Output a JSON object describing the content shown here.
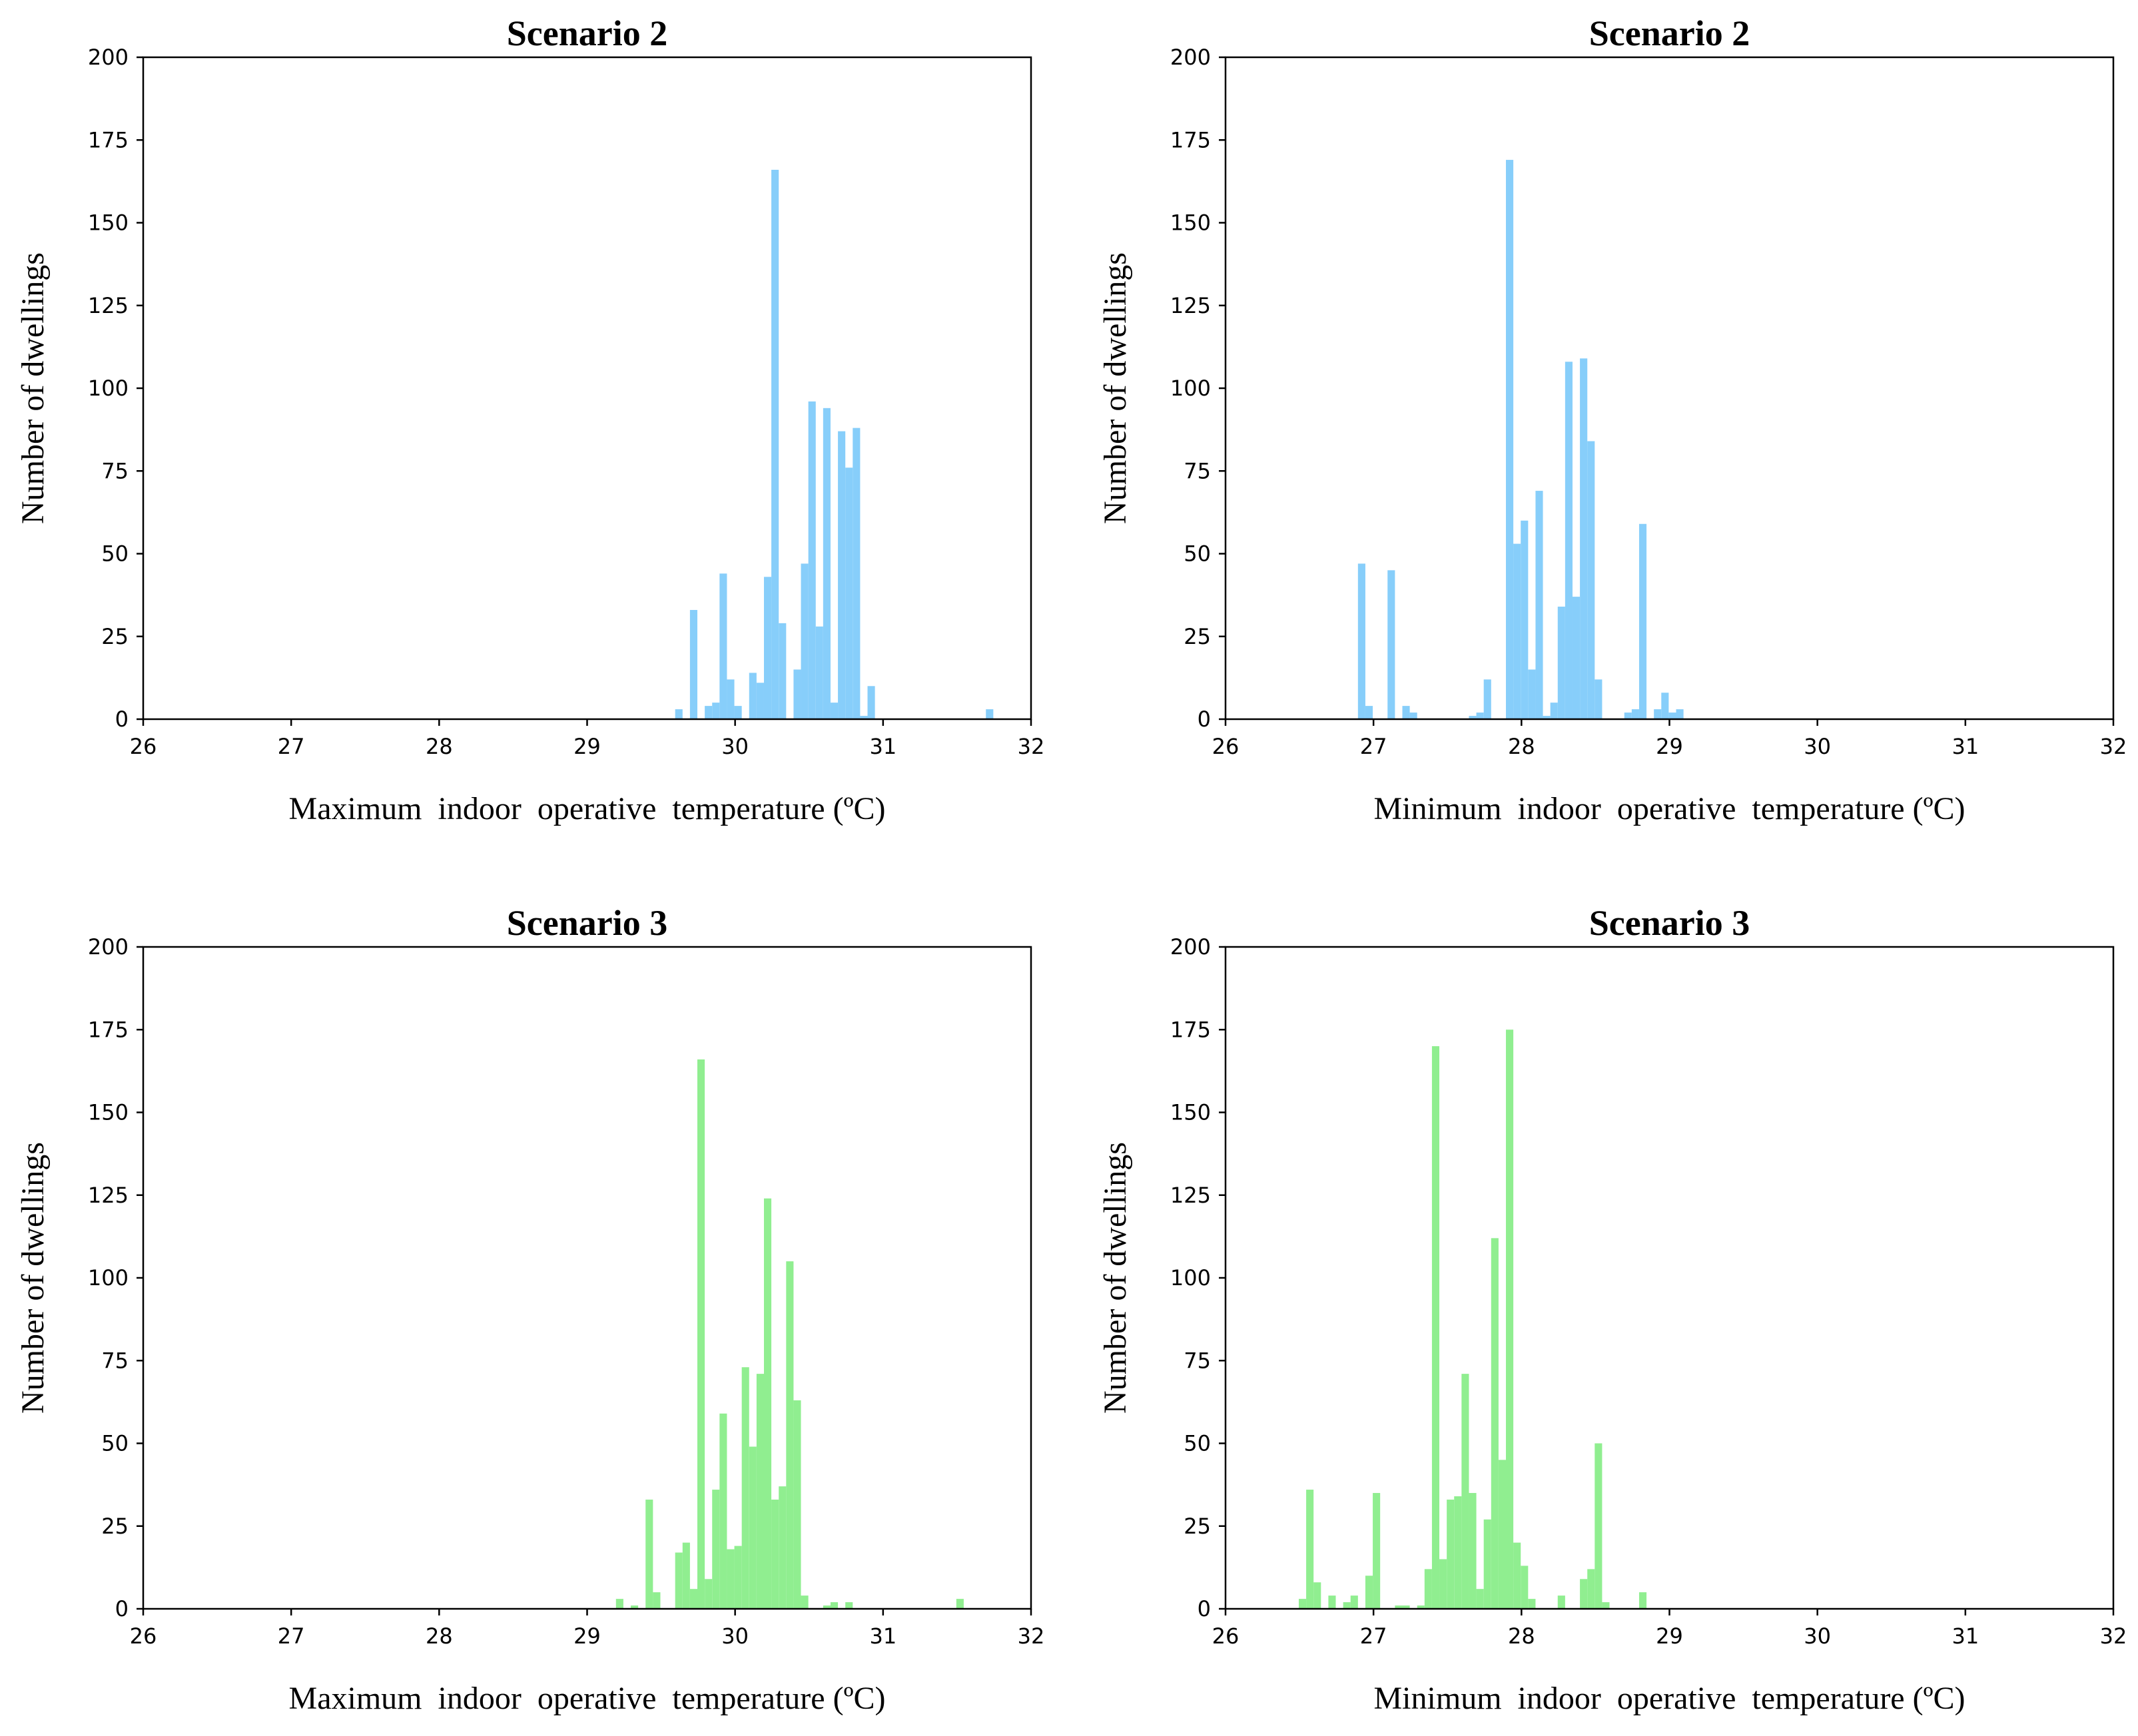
{
  "chart_data": [
    {
      "type": "bar",
      "title": "Scenario 2",
      "xlabel": "Maximum  indoor  operative  temperature (ºC)",
      "ylabel": "Number of dwellings",
      "xlim": [
        26,
        32
      ],
      "ylim": [
        0,
        200
      ],
      "xticks": [
        "26",
        "27",
        "28",
        "29",
        "30",
        "31",
        "32"
      ],
      "yticks": [
        "0",
        "25",
        "50",
        "75",
        "100",
        "125",
        "150",
        "175",
        "200"
      ],
      "color": "#87cefa",
      "bin_width": 0.05,
      "bins": [
        {
          "x": 29.62,
          "y": 3
        },
        {
          "x": 29.72,
          "y": 33
        },
        {
          "x": 29.82,
          "y": 4
        },
        {
          "x": 29.87,
          "y": 5
        },
        {
          "x": 29.92,
          "y": 44
        },
        {
          "x": 29.97,
          "y": 12
        },
        {
          "x": 30.02,
          "y": 4
        },
        {
          "x": 30.07,
          "y": 0
        },
        {
          "x": 30.12,
          "y": 14
        },
        {
          "x": 30.17,
          "y": 11
        },
        {
          "x": 30.22,
          "y": 43
        },
        {
          "x": 30.27,
          "y": 166
        },
        {
          "x": 30.32,
          "y": 29
        },
        {
          "x": 30.37,
          "y": 0
        },
        {
          "x": 30.42,
          "y": 15
        },
        {
          "x": 30.47,
          "y": 47
        },
        {
          "x": 30.52,
          "y": 96
        },
        {
          "x": 30.57,
          "y": 28
        },
        {
          "x": 30.62,
          "y": 94
        },
        {
          "x": 30.67,
          "y": 5
        },
        {
          "x": 30.72,
          "y": 87
        },
        {
          "x": 30.77,
          "y": 76
        },
        {
          "x": 30.82,
          "y": 88
        },
        {
          "x": 30.87,
          "y": 1
        },
        {
          "x": 30.92,
          "y": 10
        },
        {
          "x": 31.72,
          "y": 3
        }
      ]
    },
    {
      "type": "bar",
      "title": "Scenario 2",
      "xlabel": "Minimum  indoor  operative  temperature (ºC)",
      "ylabel": "Number of dwellings",
      "xlim": [
        26,
        32
      ],
      "ylim": [
        0,
        200
      ],
      "xticks": [
        "26",
        "27",
        "28",
        "29",
        "30",
        "31",
        "32"
      ],
      "yticks": [
        "0",
        "25",
        "50",
        "75",
        "100",
        "125",
        "150",
        "175",
        "200"
      ],
      "color": "#87cefa",
      "bin_width": 0.05,
      "bins": [
        {
          "x": 26.92,
          "y": 47
        },
        {
          "x": 26.97,
          "y": 4
        },
        {
          "x": 27.12,
          "y": 45
        },
        {
          "x": 27.22,
          "y": 4
        },
        {
          "x": 27.27,
          "y": 2
        },
        {
          "x": 27.67,
          "y": 1
        },
        {
          "x": 27.72,
          "y": 2
        },
        {
          "x": 27.77,
          "y": 12
        },
        {
          "x": 27.92,
          "y": 169
        },
        {
          "x": 27.97,
          "y": 53
        },
        {
          "x": 28.02,
          "y": 60
        },
        {
          "x": 28.07,
          "y": 15
        },
        {
          "x": 28.12,
          "y": 69
        },
        {
          "x": 28.17,
          "y": 1
        },
        {
          "x": 28.22,
          "y": 5
        },
        {
          "x": 28.27,
          "y": 34
        },
        {
          "x": 28.32,
          "y": 108
        },
        {
          "x": 28.37,
          "y": 37
        },
        {
          "x": 28.42,
          "y": 109
        },
        {
          "x": 28.47,
          "y": 84
        },
        {
          "x": 28.52,
          "y": 12
        },
        {
          "x": 28.72,
          "y": 2
        },
        {
          "x": 28.77,
          "y": 3
        },
        {
          "x": 28.82,
          "y": 59
        },
        {
          "x": 28.87,
          "y": 0
        },
        {
          "x": 28.92,
          "y": 3
        },
        {
          "x": 28.97,
          "y": 8
        },
        {
          "x": 29.02,
          "y": 2
        },
        {
          "x": 29.07,
          "y": 3
        }
      ]
    },
    {
      "type": "bar",
      "title": "Scenario 3",
      "xlabel": "Maximum  indoor  operative  temperature (ºC)",
      "ylabel": "Number of dwellings",
      "xlim": [
        26,
        32
      ],
      "ylim": [
        0,
        200
      ],
      "xticks": [
        "26",
        "27",
        "28",
        "29",
        "30",
        "31",
        "32"
      ],
      "yticks": [
        "0",
        "25",
        "50",
        "75",
        "100",
        "125",
        "150",
        "175",
        "200"
      ],
      "color": "#90ee90",
      "bin_width": 0.05,
      "bins": [
        {
          "x": 29.22,
          "y": 3
        },
        {
          "x": 29.32,
          "y": 1
        },
        {
          "x": 29.42,
          "y": 33
        },
        {
          "x": 29.47,
          "y": 5
        },
        {
          "x": 29.62,
          "y": 17
        },
        {
          "x": 29.67,
          "y": 20
        },
        {
          "x": 29.72,
          "y": 6
        },
        {
          "x": 29.77,
          "y": 166
        },
        {
          "x": 29.82,
          "y": 9
        },
        {
          "x": 29.87,
          "y": 36
        },
        {
          "x": 29.92,
          "y": 59
        },
        {
          "x": 29.97,
          "y": 18
        },
        {
          "x": 30.02,
          "y": 19
        },
        {
          "x": 30.07,
          "y": 73
        },
        {
          "x": 30.12,
          "y": 49
        },
        {
          "x": 30.17,
          "y": 71
        },
        {
          "x": 30.22,
          "y": 124
        },
        {
          "x": 30.27,
          "y": 33
        },
        {
          "x": 30.32,
          "y": 37
        },
        {
          "x": 30.37,
          "y": 105
        },
        {
          "x": 30.42,
          "y": 63
        },
        {
          "x": 30.47,
          "y": 4
        },
        {
          "x": 30.62,
          "y": 1
        },
        {
          "x": 30.67,
          "y": 2
        },
        {
          "x": 30.77,
          "y": 2
        },
        {
          "x": 31.52,
          "y": 3
        }
      ]
    },
    {
      "type": "bar",
      "title": "Scenario 3",
      "xlabel": "Minimum  indoor  operative  temperature (ºC)",
      "ylabel": "Number of dwellings",
      "xlim": [
        26,
        32
      ],
      "ylim": [
        0,
        200
      ],
      "xticks": [
        "26",
        "27",
        "28",
        "29",
        "30",
        "31",
        "32"
      ],
      "yticks": [
        "0",
        "25",
        "50",
        "75",
        "100",
        "125",
        "150",
        "175",
        "200"
      ],
      "color": "#90ee90",
      "bin_width": 0.05,
      "bins": [
        {
          "x": 26.52,
          "y": 3
        },
        {
          "x": 26.57,
          "y": 36
        },
        {
          "x": 26.62,
          "y": 8
        },
        {
          "x": 26.72,
          "y": 4
        },
        {
          "x": 26.82,
          "y": 2
        },
        {
          "x": 26.87,
          "y": 4
        },
        {
          "x": 26.97,
          "y": 10
        },
        {
          "x": 27.02,
          "y": 35
        },
        {
          "x": 27.17,
          "y": 1
        },
        {
          "x": 27.22,
          "y": 1
        },
        {
          "x": 27.32,
          "y": 1
        },
        {
          "x": 27.37,
          "y": 12
        },
        {
          "x": 27.42,
          "y": 170
        },
        {
          "x": 27.47,
          "y": 15
        },
        {
          "x": 27.52,
          "y": 33
        },
        {
          "x": 27.57,
          "y": 34
        },
        {
          "x": 27.62,
          "y": 71
        },
        {
          "x": 27.67,
          "y": 35
        },
        {
          "x": 27.72,
          "y": 6
        },
        {
          "x": 27.77,
          "y": 27
        },
        {
          "x": 27.82,
          "y": 112
        },
        {
          "x": 27.87,
          "y": 45
        },
        {
          "x": 27.92,
          "y": 175
        },
        {
          "x": 27.97,
          "y": 20
        },
        {
          "x": 28.02,
          "y": 13
        },
        {
          "x": 28.07,
          "y": 3
        },
        {
          "x": 28.27,
          "y": 4
        },
        {
          "x": 28.42,
          "y": 9
        },
        {
          "x": 28.47,
          "y": 12
        },
        {
          "x": 28.52,
          "y": 50
        },
        {
          "x": 28.57,
          "y": 2
        },
        {
          "x": 28.82,
          "y": 5
        }
      ]
    }
  ]
}
